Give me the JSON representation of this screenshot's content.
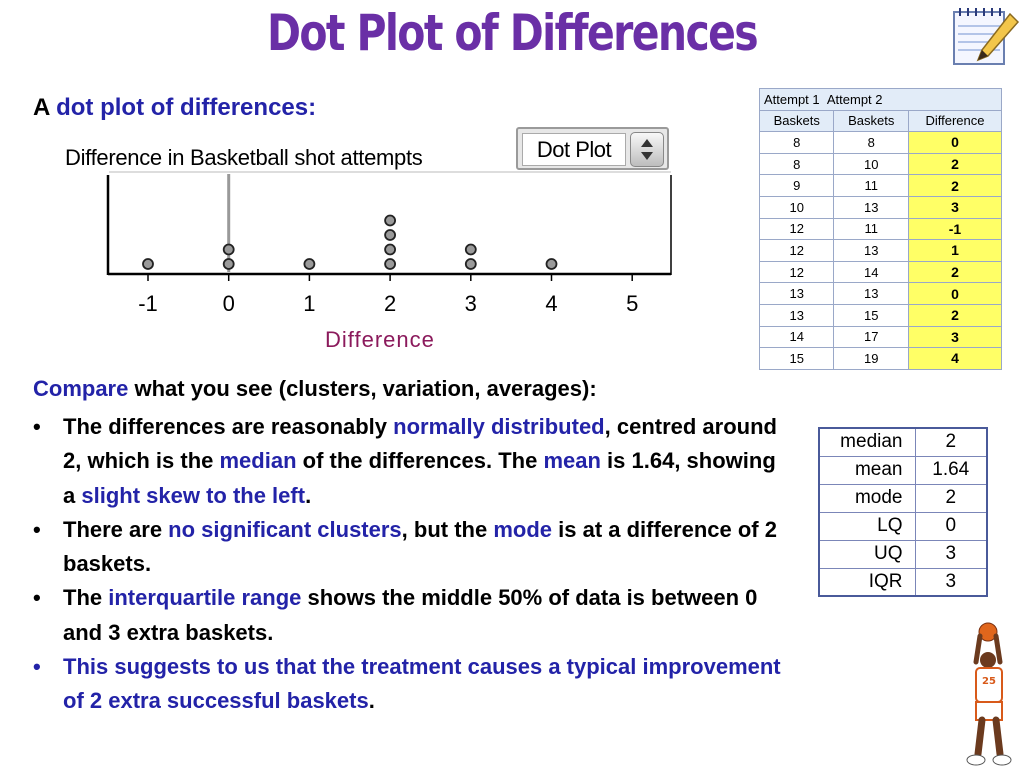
{
  "title": "Dot Plot of Differences",
  "intro": {
    "prefix": "A ",
    "highlight": "dot plot of differences:"
  },
  "dropdown": {
    "label": "Dot Plot"
  },
  "icons": {
    "notepad": "notepad-pencil-icon",
    "arrows": "up-down-arrows-icon",
    "player": "basketball-player-icon"
  },
  "colors": {
    "title": "#6a2fa6",
    "highlight": "#2323a8",
    "axis_title": "#8b1a5c",
    "difference_cell": "#ffff66"
  },
  "chart_data": {
    "type": "scatter",
    "title": "Difference in Basketball shot attempts",
    "xlabel": "Difference",
    "ylabel": "",
    "xlim": [
      -1,
      5
    ],
    "xticks": [
      "-1",
      "0",
      "1",
      "2",
      "3",
      "4",
      "5"
    ],
    "points": [
      {
        "x": -1,
        "y": 1
      },
      {
        "x": 0,
        "y": 1
      },
      {
        "x": 0,
        "y": 2
      },
      {
        "x": 1,
        "y": 1
      },
      {
        "x": 2,
        "y": 1
      },
      {
        "x": 2,
        "y": 2
      },
      {
        "x": 2,
        "y": 3
      },
      {
        "x": 2,
        "y": 4
      },
      {
        "x": 3,
        "y": 1
      },
      {
        "x": 3,
        "y": 2
      },
      {
        "x": 4,
        "y": 1
      }
    ],
    "median_line": 0,
    "grid": false,
    "legend": "none"
  },
  "data_table": {
    "header_top": [
      "Attempt 1",
      "Attempt 2"
    ],
    "headers": [
      "Baskets",
      "Baskets",
      "Difference"
    ],
    "rows": [
      [
        "8",
        "8",
        "0"
      ],
      [
        "8",
        "10",
        "2"
      ],
      [
        "9",
        "11",
        "2"
      ],
      [
        "10",
        "13",
        "3"
      ],
      [
        "12",
        "11",
        "-1"
      ],
      [
        "12",
        "13",
        "1"
      ],
      [
        "12",
        "14",
        "2"
      ],
      [
        "13",
        "13",
        "0"
      ],
      [
        "13",
        "15",
        "2"
      ],
      [
        "14",
        "17",
        "3"
      ],
      [
        "15",
        "19",
        "4"
      ]
    ]
  },
  "stats": [
    [
      "median",
      "2"
    ],
    [
      "mean",
      "1.64"
    ],
    [
      "mode",
      "2"
    ],
    [
      "LQ",
      "0"
    ],
    [
      "UQ",
      "3"
    ],
    [
      "IQR",
      "3"
    ]
  ],
  "compare": {
    "highlight": "Compare",
    "rest": " what you see (clusters, variation, averages):"
  },
  "bullets": {
    "b1": {
      "t1": "The differences are reasonably ",
      "h1": "normally distributed",
      "t2": ", centred around 2, which is the ",
      "h2": "median",
      "t3": " of the differences. The ",
      "h3": "mean",
      "t4": " is 1.64, showing a ",
      "h4": "slight skew to the left",
      "t5": "."
    },
    "b2": {
      "t1": "There are ",
      "h1": "no significant clusters",
      "t2": ", but the ",
      "h2": "mode",
      "t3": " is at a difference of 2 baskets."
    },
    "b3": {
      "t1": "The ",
      "h1": "interquartile range",
      "t2": " shows the middle 50% of data is between 0 and 3 extra baskets."
    },
    "b4": {
      "t1": "This suggests to us that the treatment causes a typical improvement of 2 extra successful baskets",
      "t2": "."
    }
  },
  "player_number": "25"
}
